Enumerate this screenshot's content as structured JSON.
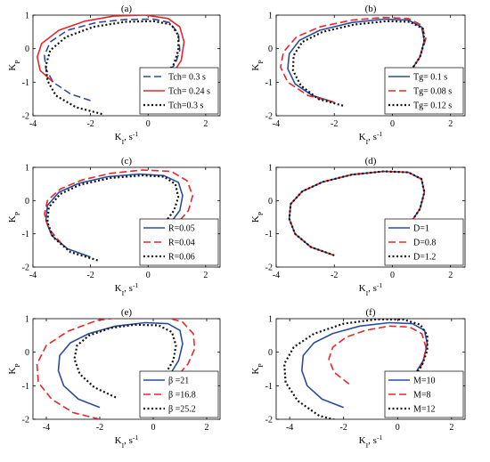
{
  "colors": {
    "blue": "#2b4c9b",
    "red": "#e8262b",
    "black": "#111111"
  },
  "chart_data": [
    {
      "type": "line",
      "title": "(a)",
      "xlabel": "K_I, s^-1",
      "ylabel": "K_P",
      "xlim": [
        -4,
        2.5
      ],
      "ylim": [
        -2,
        1
      ],
      "xticks": [
        -4,
        -2,
        0,
        2
      ],
      "yticks": [
        -2,
        -1,
        0,
        1
      ],
      "legend_position": "bottom-right",
      "series": [
        {
          "name": "Tch= 0.3 s",
          "style": "dashed",
          "color": "blue",
          "x": [
            -2,
            -2.7,
            -3.3,
            -3.55,
            -3.6,
            -3.4,
            -2.8,
            -1.8,
            -0.8,
            0.2,
            0.75,
            1.05,
            1.1,
            0.95,
            0.6,
            0.2
          ],
          "y": [
            -1.55,
            -1.35,
            -1.0,
            -0.6,
            -0.2,
            0.2,
            0.55,
            0.78,
            0.87,
            0.88,
            0.78,
            0.45,
            -0.05,
            -0.45,
            -0.8,
            -1.05
          ]
        },
        {
          "name": "Tch= 0.24 s",
          "style": "solid",
          "color": "red",
          "x": [
            -3.3,
            -3.75,
            -3.85,
            -3.7,
            -3.1,
            -2.2,
            -1.2,
            -0.1,
            0.7,
            1.1,
            1.25,
            1.15,
            0.85,
            0.35
          ],
          "y": [
            -1.0,
            -0.65,
            -0.25,
            0.15,
            0.55,
            0.82,
            0.97,
            1.0,
            0.9,
            0.65,
            0.2,
            -0.35,
            -0.75,
            -1.05
          ]
        },
        {
          "name": "Tch=0.3 s",
          "style": "dotted",
          "color": "black",
          "x": [
            -1.6,
            -2.5,
            -3.2,
            -3.5,
            -3.55,
            -3.4,
            -2.85,
            -1.9,
            -0.8,
            0.2,
            0.8,
            1.05,
            1.05,
            0.9,
            0.6,
            0.2
          ],
          "y": [
            -1.95,
            -1.75,
            -1.4,
            -0.95,
            -0.5,
            -0.05,
            0.35,
            0.65,
            0.8,
            0.82,
            0.72,
            0.4,
            -0.05,
            -0.45,
            -0.8,
            -1.05
          ]
        }
      ]
    },
    {
      "type": "line",
      "title": "(b)",
      "xlabel": "K_I, s^-1",
      "ylabel": "K_P",
      "xlim": [
        -4,
        2.5
      ],
      "ylim": [
        -2,
        1
      ],
      "xticks": [
        -4,
        -2,
        0,
        2
      ],
      "yticks": [
        -2,
        -1,
        0,
        1
      ],
      "legend_position": "bottom-right",
      "series": [
        {
          "name": "Tg= 0.1 s",
          "style": "solid",
          "color": "blue",
          "x": [
            -2,
            -2.75,
            -3.35,
            -3.6,
            -3.55,
            -3.2,
            -2.5,
            -1.4,
            -0.3,
            0.55,
            1.0,
            1.1,
            0.95,
            0.6,
            0.2
          ],
          "y": [
            -1.6,
            -1.4,
            -1.05,
            -0.6,
            -0.15,
            0.25,
            0.55,
            0.78,
            0.88,
            0.85,
            0.65,
            0.25,
            -0.25,
            -0.7,
            -1.0
          ]
        },
        {
          "name": "Tg= 0.08 s",
          "style": "dashed",
          "color": "red",
          "x": [
            -2,
            -2.9,
            -3.6,
            -3.85,
            -3.75,
            -3.3,
            -2.5,
            -1.4,
            -0.3,
            0.55,
            1.0,
            1.15,
            0.95,
            0.6,
            0.2
          ],
          "y": [
            -1.6,
            -1.4,
            -1.0,
            -0.55,
            -0.1,
            0.35,
            0.65,
            0.85,
            0.93,
            0.9,
            0.7,
            0.3,
            -0.25,
            -0.7,
            -1.0
          ]
        },
        {
          "name": "Tg= 0.12 s",
          "style": "dotted",
          "color": "black",
          "x": [
            -1.7,
            -2.55,
            -3.15,
            -3.42,
            -3.4,
            -3.1,
            -2.4,
            -1.3,
            -0.2,
            0.6,
            1.05,
            1.1,
            0.95,
            0.6,
            0.2
          ],
          "y": [
            -1.7,
            -1.5,
            -1.1,
            -0.65,
            -0.2,
            0.2,
            0.5,
            0.72,
            0.82,
            0.8,
            0.6,
            0.2,
            -0.25,
            -0.7,
            -1.0
          ]
        }
      ]
    },
    {
      "type": "line",
      "title": "(c)",
      "xlabel": "K_I, s^-1",
      "ylabel": "K_P",
      "xlim": [
        -4,
        2.5
      ],
      "ylim": [
        -2,
        1
      ],
      "xticks": [
        -4,
        -2,
        0,
        2
      ],
      "yticks": [
        -2,
        -1,
        0,
        1
      ],
      "legend_position": "bottom-right",
      "series": [
        {
          "name": "R=0.05",
          "style": "solid",
          "color": "blue",
          "x": [
            -2,
            -2.8,
            -3.35,
            -3.55,
            -3.5,
            -3.1,
            -2.4,
            -1.4,
            -0.3,
            0.55,
            1.05,
            1.2,
            1.1,
            0.75,
            0.3
          ],
          "y": [
            -1.7,
            -1.45,
            -1.05,
            -0.6,
            -0.15,
            0.25,
            0.52,
            0.72,
            0.8,
            0.75,
            0.55,
            0.15,
            -0.3,
            -0.7,
            -1.0
          ]
        },
        {
          "name": "R=0.04",
          "style": "dashed",
          "color": "red",
          "x": [
            -3.0,
            -3.45,
            -3.6,
            -3.5,
            -3.05,
            -2.3,
            -1.3,
            -0.2,
            0.8,
            1.35,
            1.55,
            1.4,
            1.0,
            0.55
          ],
          "y": [
            -1.3,
            -0.85,
            -0.4,
            0.0,
            0.35,
            0.62,
            0.82,
            0.92,
            0.88,
            0.6,
            0.15,
            -0.3,
            -0.7,
            -0.95
          ]
        },
        {
          "name": "R=0.06",
          "style": "dotted",
          "color": "black",
          "x": [
            -1.75,
            -2.7,
            -3.3,
            -3.5,
            -3.45,
            -3.05,
            -2.35,
            -1.3,
            -0.2,
            0.55,
            0.95,
            1.05,
            0.9,
            0.55,
            0.1
          ],
          "y": [
            -1.8,
            -1.55,
            -1.1,
            -0.65,
            -0.2,
            0.2,
            0.48,
            0.68,
            0.76,
            0.72,
            0.5,
            0.1,
            -0.3,
            -0.7,
            -1.05
          ]
        }
      ]
    },
    {
      "type": "line",
      "title": "(d)",
      "xlabel": "K_I, s^-1",
      "ylabel": "K_P",
      "xlim": [
        -4,
        2.5
      ],
      "ylim": [
        -2,
        1
      ],
      "xticks": [
        -4,
        -2,
        0,
        2
      ],
      "yticks": [
        -2,
        -1,
        0,
        1
      ],
      "legend_position": "bottom-right",
      "series": [
        {
          "name": "D=1",
          "style": "solid",
          "color": "blue",
          "x": [
            -2,
            -2.8,
            -3.35,
            -3.55,
            -3.5,
            -3.1,
            -2.4,
            -1.4,
            -0.3,
            0.55,
            1.0,
            1.1,
            0.95,
            0.6,
            0.2
          ],
          "y": [
            -1.65,
            -1.4,
            -1.0,
            -0.55,
            -0.1,
            0.28,
            0.56,
            0.78,
            0.88,
            0.85,
            0.65,
            0.25,
            -0.25,
            -0.7,
            -1.0
          ]
        },
        {
          "name": "D=0.8",
          "style": "dashed",
          "color": "red",
          "x": [
            -2,
            -2.8,
            -3.35,
            -3.55,
            -3.5,
            -3.1,
            -2.4,
            -1.4,
            -0.3,
            0.55,
            1.0,
            1.1,
            0.95,
            0.6,
            0.2
          ],
          "y": [
            -1.65,
            -1.4,
            -1.0,
            -0.55,
            -0.1,
            0.28,
            0.56,
            0.78,
            0.88,
            0.85,
            0.65,
            0.25,
            -0.25,
            -0.7,
            -1.0
          ]
        },
        {
          "name": "D=1.2",
          "style": "dotted",
          "color": "black",
          "x": [
            -2,
            -2.8,
            -3.35,
            -3.55,
            -3.5,
            -3.1,
            -2.4,
            -1.4,
            -0.3,
            0.55,
            1.0,
            1.1,
            0.95,
            0.6,
            0.2
          ],
          "y": [
            -1.65,
            -1.4,
            -1.0,
            -0.55,
            -0.1,
            0.28,
            0.56,
            0.78,
            0.88,
            0.85,
            0.65,
            0.25,
            -0.25,
            -0.7,
            -1.0
          ]
        }
      ]
    },
    {
      "type": "line",
      "title": "(e)",
      "xlabel": "K_I, s^-1",
      "ylabel": "K_P",
      "xlim": [
        -4.5,
        2.5
      ],
      "ylim": [
        -2,
        1
      ],
      "xticks": [
        -4,
        -2,
        0,
        2
      ],
      "yticks": [
        -2,
        -1,
        0,
        1
      ],
      "legend_position": "bottom-right",
      "series": [
        {
          "name": "β =21",
          "style": "solid",
          "color": "blue",
          "x": [
            -2,
            -2.8,
            -3.35,
            -3.55,
            -3.5,
            -3.1,
            -2.4,
            -1.4,
            -0.3,
            0.55,
            1.0,
            1.1,
            0.95,
            0.6,
            0.2
          ],
          "y": [
            -1.65,
            -1.4,
            -1.0,
            -0.55,
            -0.1,
            0.28,
            0.56,
            0.78,
            0.88,
            0.85,
            0.65,
            0.25,
            -0.25,
            -0.7,
            -1.0
          ]
        },
        {
          "name": "β =16.8",
          "style": "dashed",
          "color": "red",
          "x": [
            -2.0,
            -3.0,
            -3.8,
            -4.3,
            -4.35,
            -4.0,
            -3.2,
            -2.1,
            -0.8,
            0.3,
            1.1,
            1.5,
            1.55,
            1.3,
            0.8,
            0.3
          ],
          "y": [
            -2.0,
            -1.8,
            -1.4,
            -0.9,
            -0.35,
            0.2,
            0.62,
            0.95,
            1.08,
            1.08,
            0.9,
            0.55,
            0.1,
            -0.35,
            -0.8,
            -1.05
          ]
        },
        {
          "name": "β =25.2",
          "style": "dotted",
          "color": "black",
          "x": [
            -1.4,
            -2.2,
            -2.75,
            -2.95,
            -2.85,
            -2.4,
            -1.6,
            -0.7,
            0.2,
            0.7,
            0.85,
            0.75,
            0.45,
            0.05
          ],
          "y": [
            -1.35,
            -1.05,
            -0.65,
            -0.2,
            0.2,
            0.5,
            0.72,
            0.82,
            0.8,
            0.6,
            0.2,
            -0.25,
            -0.65,
            -0.95
          ]
        }
      ]
    },
    {
      "type": "line",
      "title": "(f)",
      "xlabel": "K_I, s^-1",
      "ylabel": "K_P",
      "xlim": [
        -4.5,
        2.5
      ],
      "ylim": [
        -2,
        1
      ],
      "xticks": [
        -4,
        -2,
        0,
        2
      ],
      "yticks": [
        -2,
        -1,
        0,
        1
      ],
      "legend_position": "bottom-right",
      "series": [
        {
          "name": "M=10",
          "style": "solid",
          "color": "blue",
          "x": [
            -2,
            -2.8,
            -3.35,
            -3.55,
            -3.5,
            -3.1,
            -2.4,
            -1.4,
            -0.3,
            0.55,
            1.0,
            1.1,
            0.95,
            0.6,
            0.2
          ],
          "y": [
            -1.65,
            -1.4,
            -1.0,
            -0.55,
            -0.1,
            0.28,
            0.56,
            0.78,
            0.88,
            0.85,
            0.65,
            0.25,
            -0.25,
            -0.7,
            -1.0
          ]
        },
        {
          "name": "M=8",
          "style": "dashed",
          "color": "red",
          "x": [
            -1.8,
            -2.35,
            -2.55,
            -2.4,
            -1.9,
            -1.2,
            -0.3,
            0.45,
            0.9,
            1.05,
            0.95,
            0.65,
            0.25
          ],
          "y": [
            -0.95,
            -0.6,
            -0.2,
            0.15,
            0.45,
            0.65,
            0.78,
            0.75,
            0.55,
            0.15,
            -0.3,
            -0.7,
            -1.0
          ]
        },
        {
          "name": "M=12",
          "style": "dotted",
          "color": "black",
          "x": [
            -1.9,
            -2.9,
            -3.7,
            -4.15,
            -4.2,
            -3.85,
            -3.1,
            -2.0,
            -0.8,
            0.2,
            0.85,
            1.1,
            1.1,
            0.9,
            0.55,
            0.15
          ],
          "y": [
            -2.1,
            -1.9,
            -1.45,
            -0.9,
            -0.35,
            0.15,
            0.55,
            0.85,
            0.98,
            0.98,
            0.82,
            0.5,
            0.05,
            -0.4,
            -0.78,
            -1.05
          ]
        }
      ]
    }
  ]
}
